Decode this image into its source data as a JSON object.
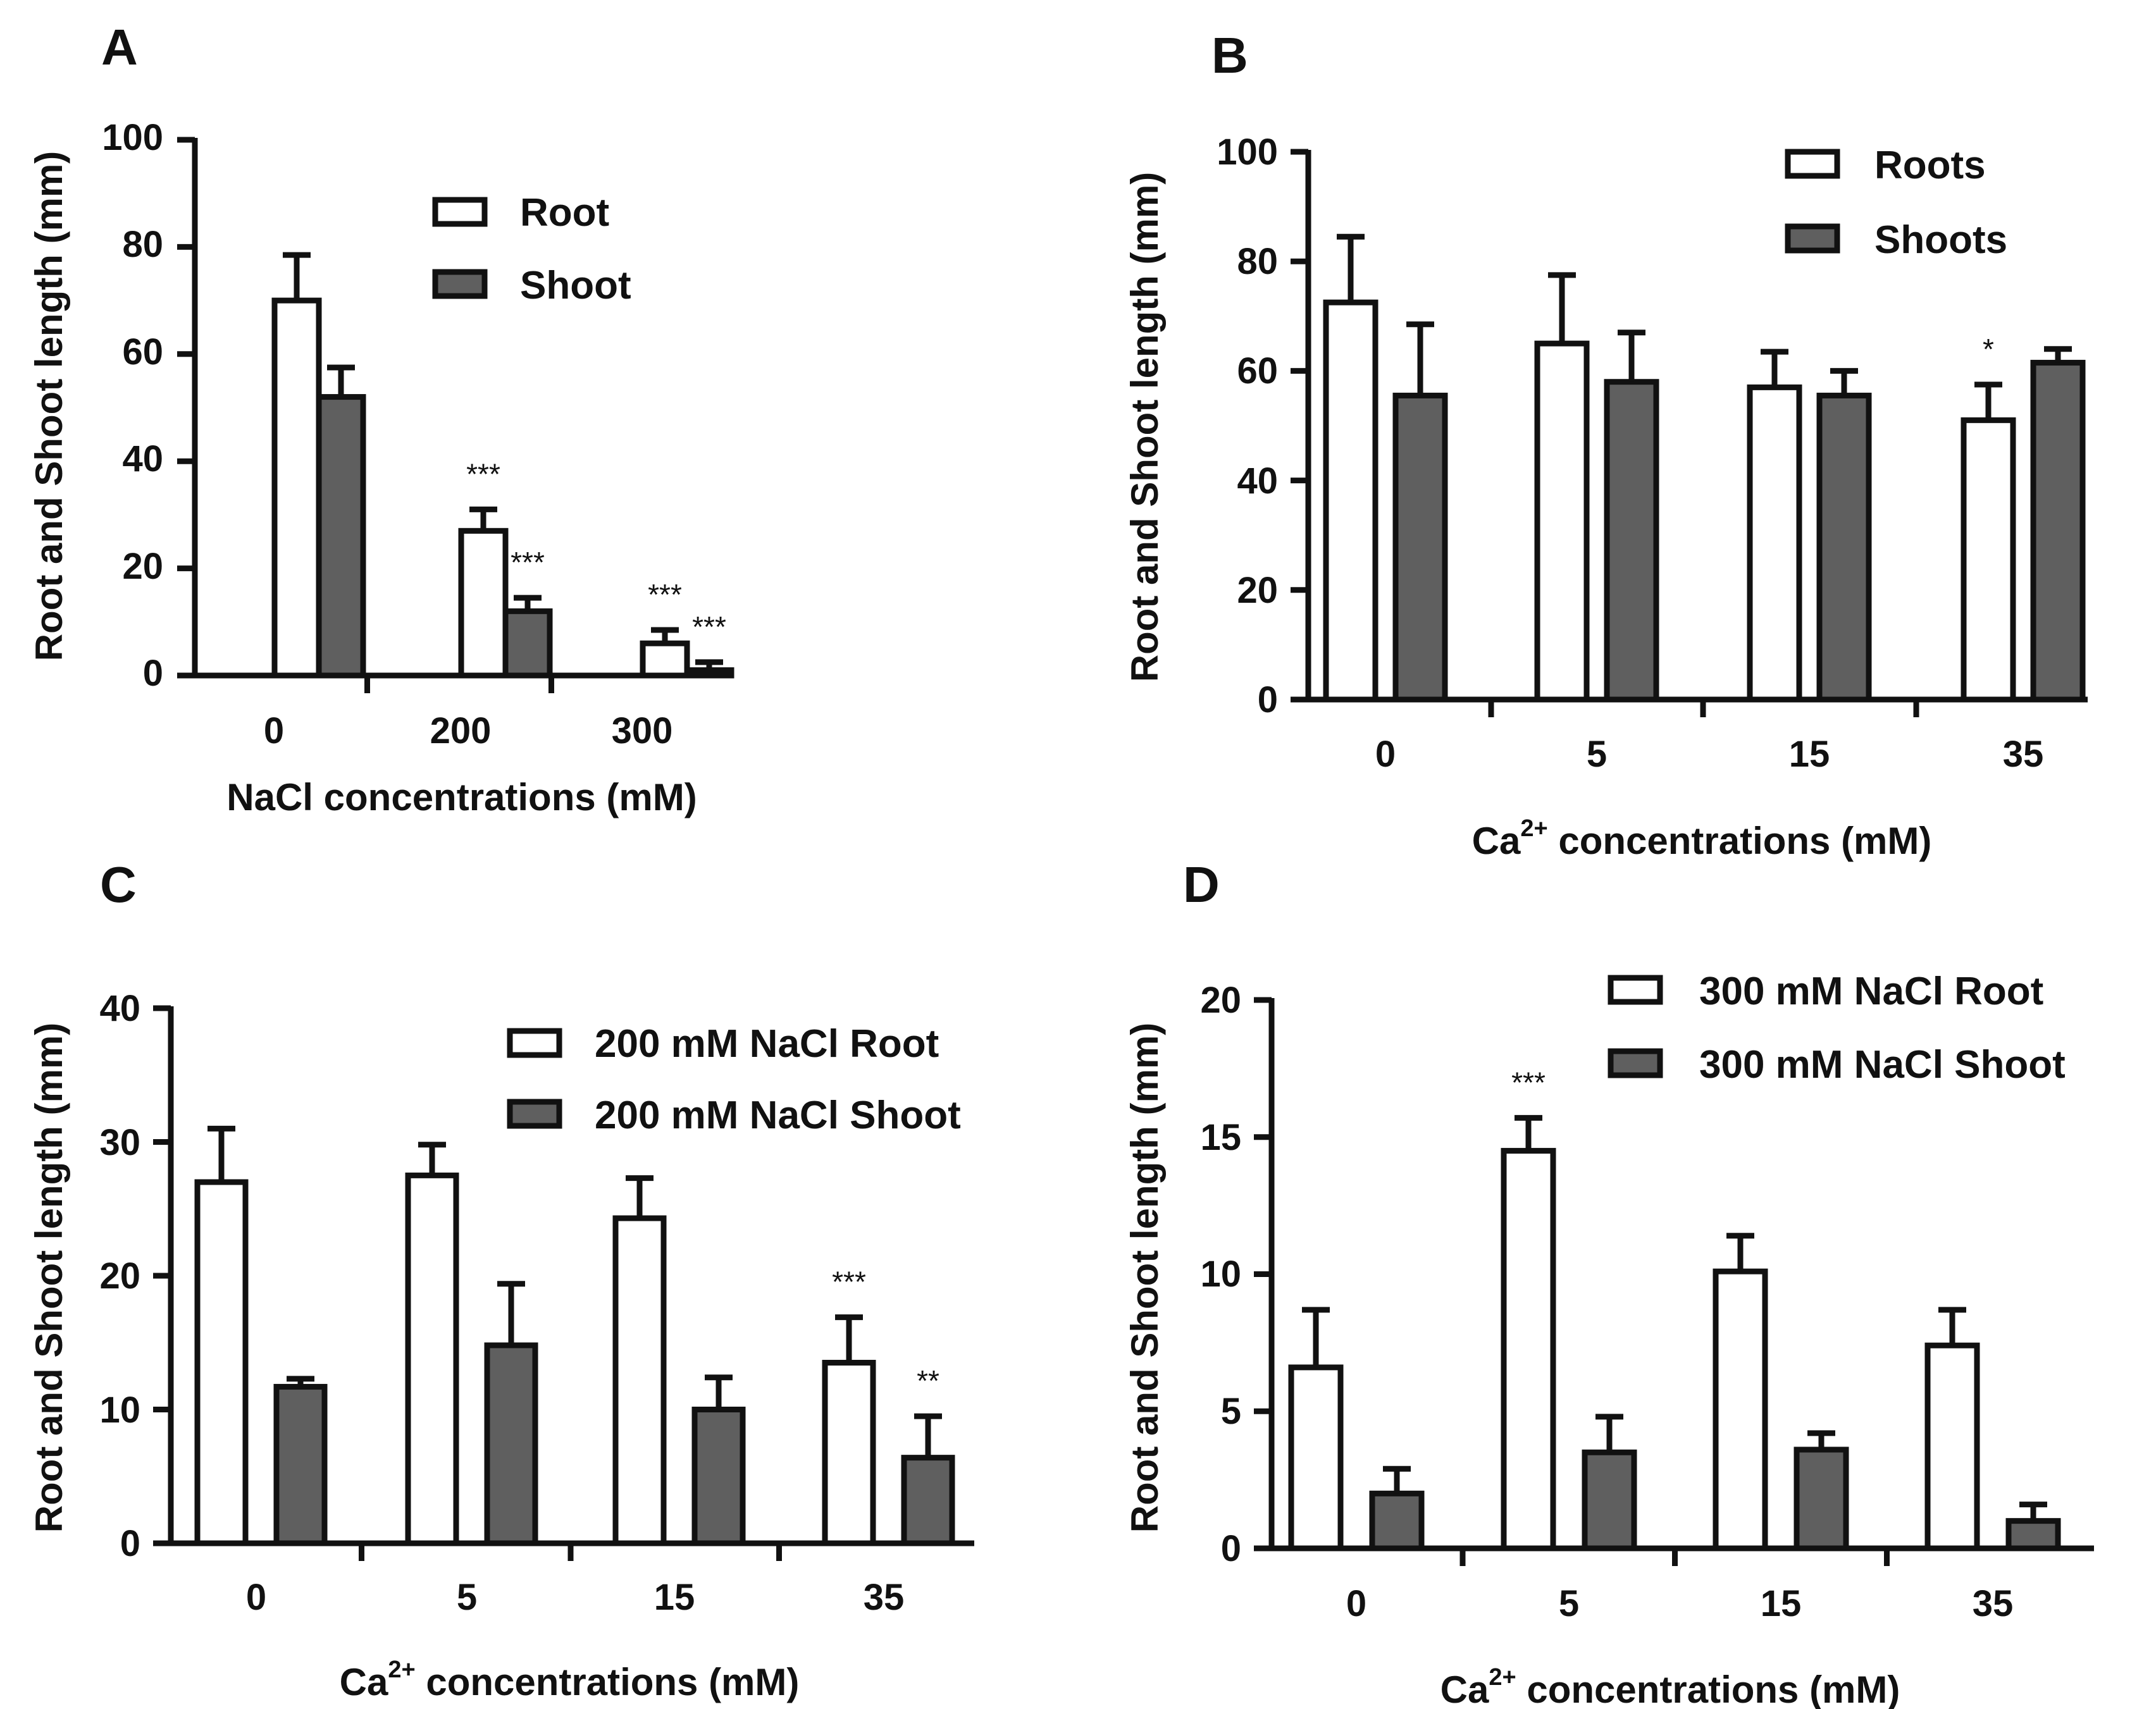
{
  "figure": {
    "background": "#ffffff",
    "ink": "#111111",
    "root_fill": "#ffffff",
    "shoot_fill": "#5f5f5f"
  },
  "chart_data": [
    {
      "panel": "A",
      "type": "bar",
      "categories": [
        "0",
        "200",
        "300"
      ],
      "series": [
        {
          "name": "Root",
          "values": [
            70,
            27,
            6
          ],
          "errors": [
            8.5,
            4,
            2.5
          ],
          "fill": "#ffffff",
          "sig": [
            "",
            "***",
            "***"
          ]
        },
        {
          "name": "Shoot",
          "values": [
            52,
            12,
            1
          ],
          "errors": [
            5.5,
            2.5,
            1.5
          ],
          "fill": "#5f5f5f",
          "sig": [
            "",
            "***",
            "***"
          ]
        }
      ],
      "xlabel": "NaCl concentrations (mM)",
      "ylabel": "Root and Shoot length (mm)",
      "ylim": [
        0,
        100
      ],
      "yticks": [
        "0",
        "20",
        "40",
        "60",
        "80",
        "100"
      ],
      "legend": "top-right"
    },
    {
      "panel": "B",
      "type": "bar",
      "categories": [
        "0",
        "5",
        "15",
        "35"
      ],
      "series": [
        {
          "name": "Roots",
          "values": [
            72.5,
            65,
            57,
            51
          ],
          "errors": [
            12,
            12.5,
            6.5,
            6.5
          ],
          "fill": "#ffffff",
          "sig": [
            "",
            "",
            "",
            "*"
          ]
        },
        {
          "name": "Shoots",
          "values": [
            55.5,
            58,
            55.5,
            61.5
          ],
          "errors": [
            13,
            9,
            4.5,
            2.5
          ],
          "fill": "#5f5f5f",
          "sig": [
            "",
            "",
            "",
            ""
          ]
        }
      ],
      "xlabel_pre": "Ca",
      "xlabel_sup": "2+",
      "xlabel_post": " concentrations (mM)",
      "ylabel": "Root and Shoot length (mm)",
      "ylim": [
        0,
        100
      ],
      "yticks": [
        "0",
        "20",
        "40",
        "60",
        "80",
        "100"
      ],
      "legend": "top-right"
    },
    {
      "panel": "C",
      "type": "bar",
      "categories": [
        "0",
        "5",
        "15",
        "35"
      ],
      "series": [
        {
          "name": "200 mM NaCl Root",
          "values": [
            27,
            27.5,
            24.3,
            13.5
          ],
          "errors": [
            4,
            2.3,
            3,
            3.4
          ],
          "fill": "#ffffff",
          "sig": [
            "",
            "",
            "",
            "***"
          ]
        },
        {
          "name": "200 mM NaCl Shoot",
          "values": [
            11.7,
            14.8,
            10,
            6.4
          ],
          "errors": [
            0.6,
            4.6,
            2.4,
            3.1
          ],
          "fill": "#5f5f5f",
          "sig": [
            "",
            "",
            "",
            "**"
          ]
        }
      ],
      "xlabel_pre": "Ca",
      "xlabel_sup": "2+",
      "xlabel_post": " concentrations (mM)",
      "ylabel": "Root and Shoot length (mm)",
      "ylim": [
        0,
        40
      ],
      "yticks": [
        "0",
        "10",
        "20",
        "30",
        "40"
      ],
      "legend": "top-right"
    },
    {
      "panel": "D",
      "type": "bar",
      "categories": [
        "0",
        "5",
        "15",
        "35"
      ],
      "series": [
        {
          "name": "300 mM NaCl Root",
          "values": [
            6.6,
            14.5,
            10.1,
            7.4
          ],
          "errors": [
            2.1,
            1.2,
            1.3,
            1.3
          ],
          "fill": "#ffffff",
          "sig": [
            "",
            "***",
            "",
            ""
          ]
        },
        {
          "name": "300 mM NaCl Shoot",
          "values": [
            2.0,
            3.5,
            3.6,
            1.0
          ],
          "errors": [
            0.9,
            1.3,
            0.6,
            0.6
          ],
          "fill": "#5f5f5f",
          "sig": [
            "",
            "",
            "",
            ""
          ]
        }
      ],
      "xlabel_pre": "Ca",
      "xlabel_sup": "2+",
      "xlabel_post": " concentrations (mM)",
      "ylabel": "Root and Shoot length (mm)",
      "ylim": [
        0,
        20
      ],
      "yticks": [
        "0",
        "5",
        "10",
        "15",
        "20"
      ],
      "legend": "top-right"
    }
  ]
}
